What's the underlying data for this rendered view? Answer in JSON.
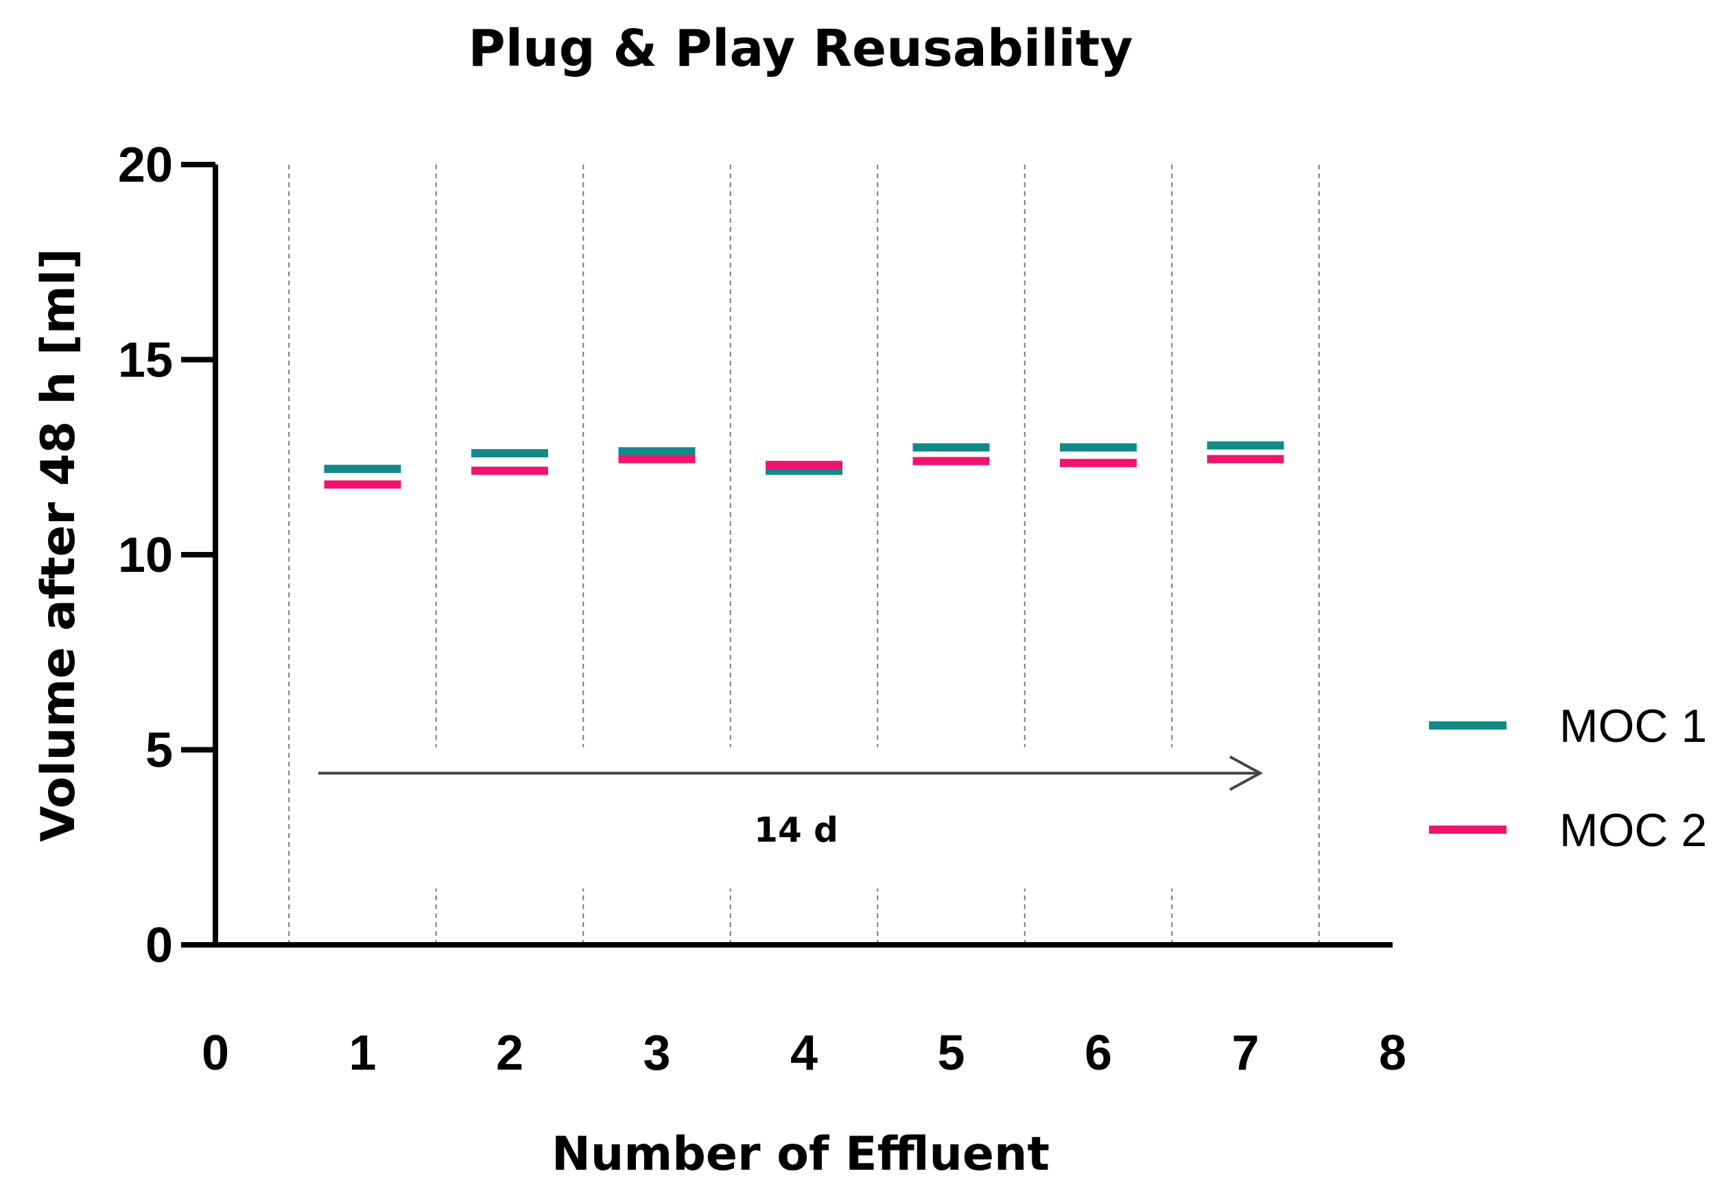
{
  "chart_data": {
    "type": "scatter",
    "title": "Plug & Play Reusability",
    "xlabel": "Number of Effluent",
    "ylabel": "Volume after 48 h [ml]",
    "xlim": [
      0,
      8
    ],
    "ylim": [
      0,
      20
    ],
    "x_ticks": [
      "0",
      "1",
      "2",
      "3",
      "4",
      "5",
      "6",
      "7",
      "8"
    ],
    "y_ticks": [
      "0",
      "5",
      "10",
      "15",
      "20"
    ],
    "vertical_gridlines_at": [
      0.5,
      1.5,
      2.5,
      3.5,
      4.5,
      5.5,
      6.5,
      7.5
    ],
    "gridlines": "dashed vertical",
    "marker": "horizontal line",
    "series": [
      {
        "name": "MOC 1",
        "color": "#128a8a",
        "x": [
          1,
          2,
          3,
          4,
          5,
          6,
          7
        ],
        "y": [
          12.2,
          12.6,
          12.65,
          12.15,
          12.75,
          12.75,
          12.8
        ]
      },
      {
        "name": "MOC 2",
        "color": "#f0146e",
        "x": [
          1,
          2,
          3,
          4,
          5,
          6,
          7
        ],
        "y": [
          11.8,
          12.15,
          12.45,
          12.3,
          12.4,
          12.35,
          12.45
        ]
      }
    ],
    "annotation": {
      "text": "14 d",
      "arrow_from": [
        0.7,
        4.4
      ],
      "arrow_to": [
        7.1,
        4.4
      ]
    },
    "legend_position": "right"
  }
}
